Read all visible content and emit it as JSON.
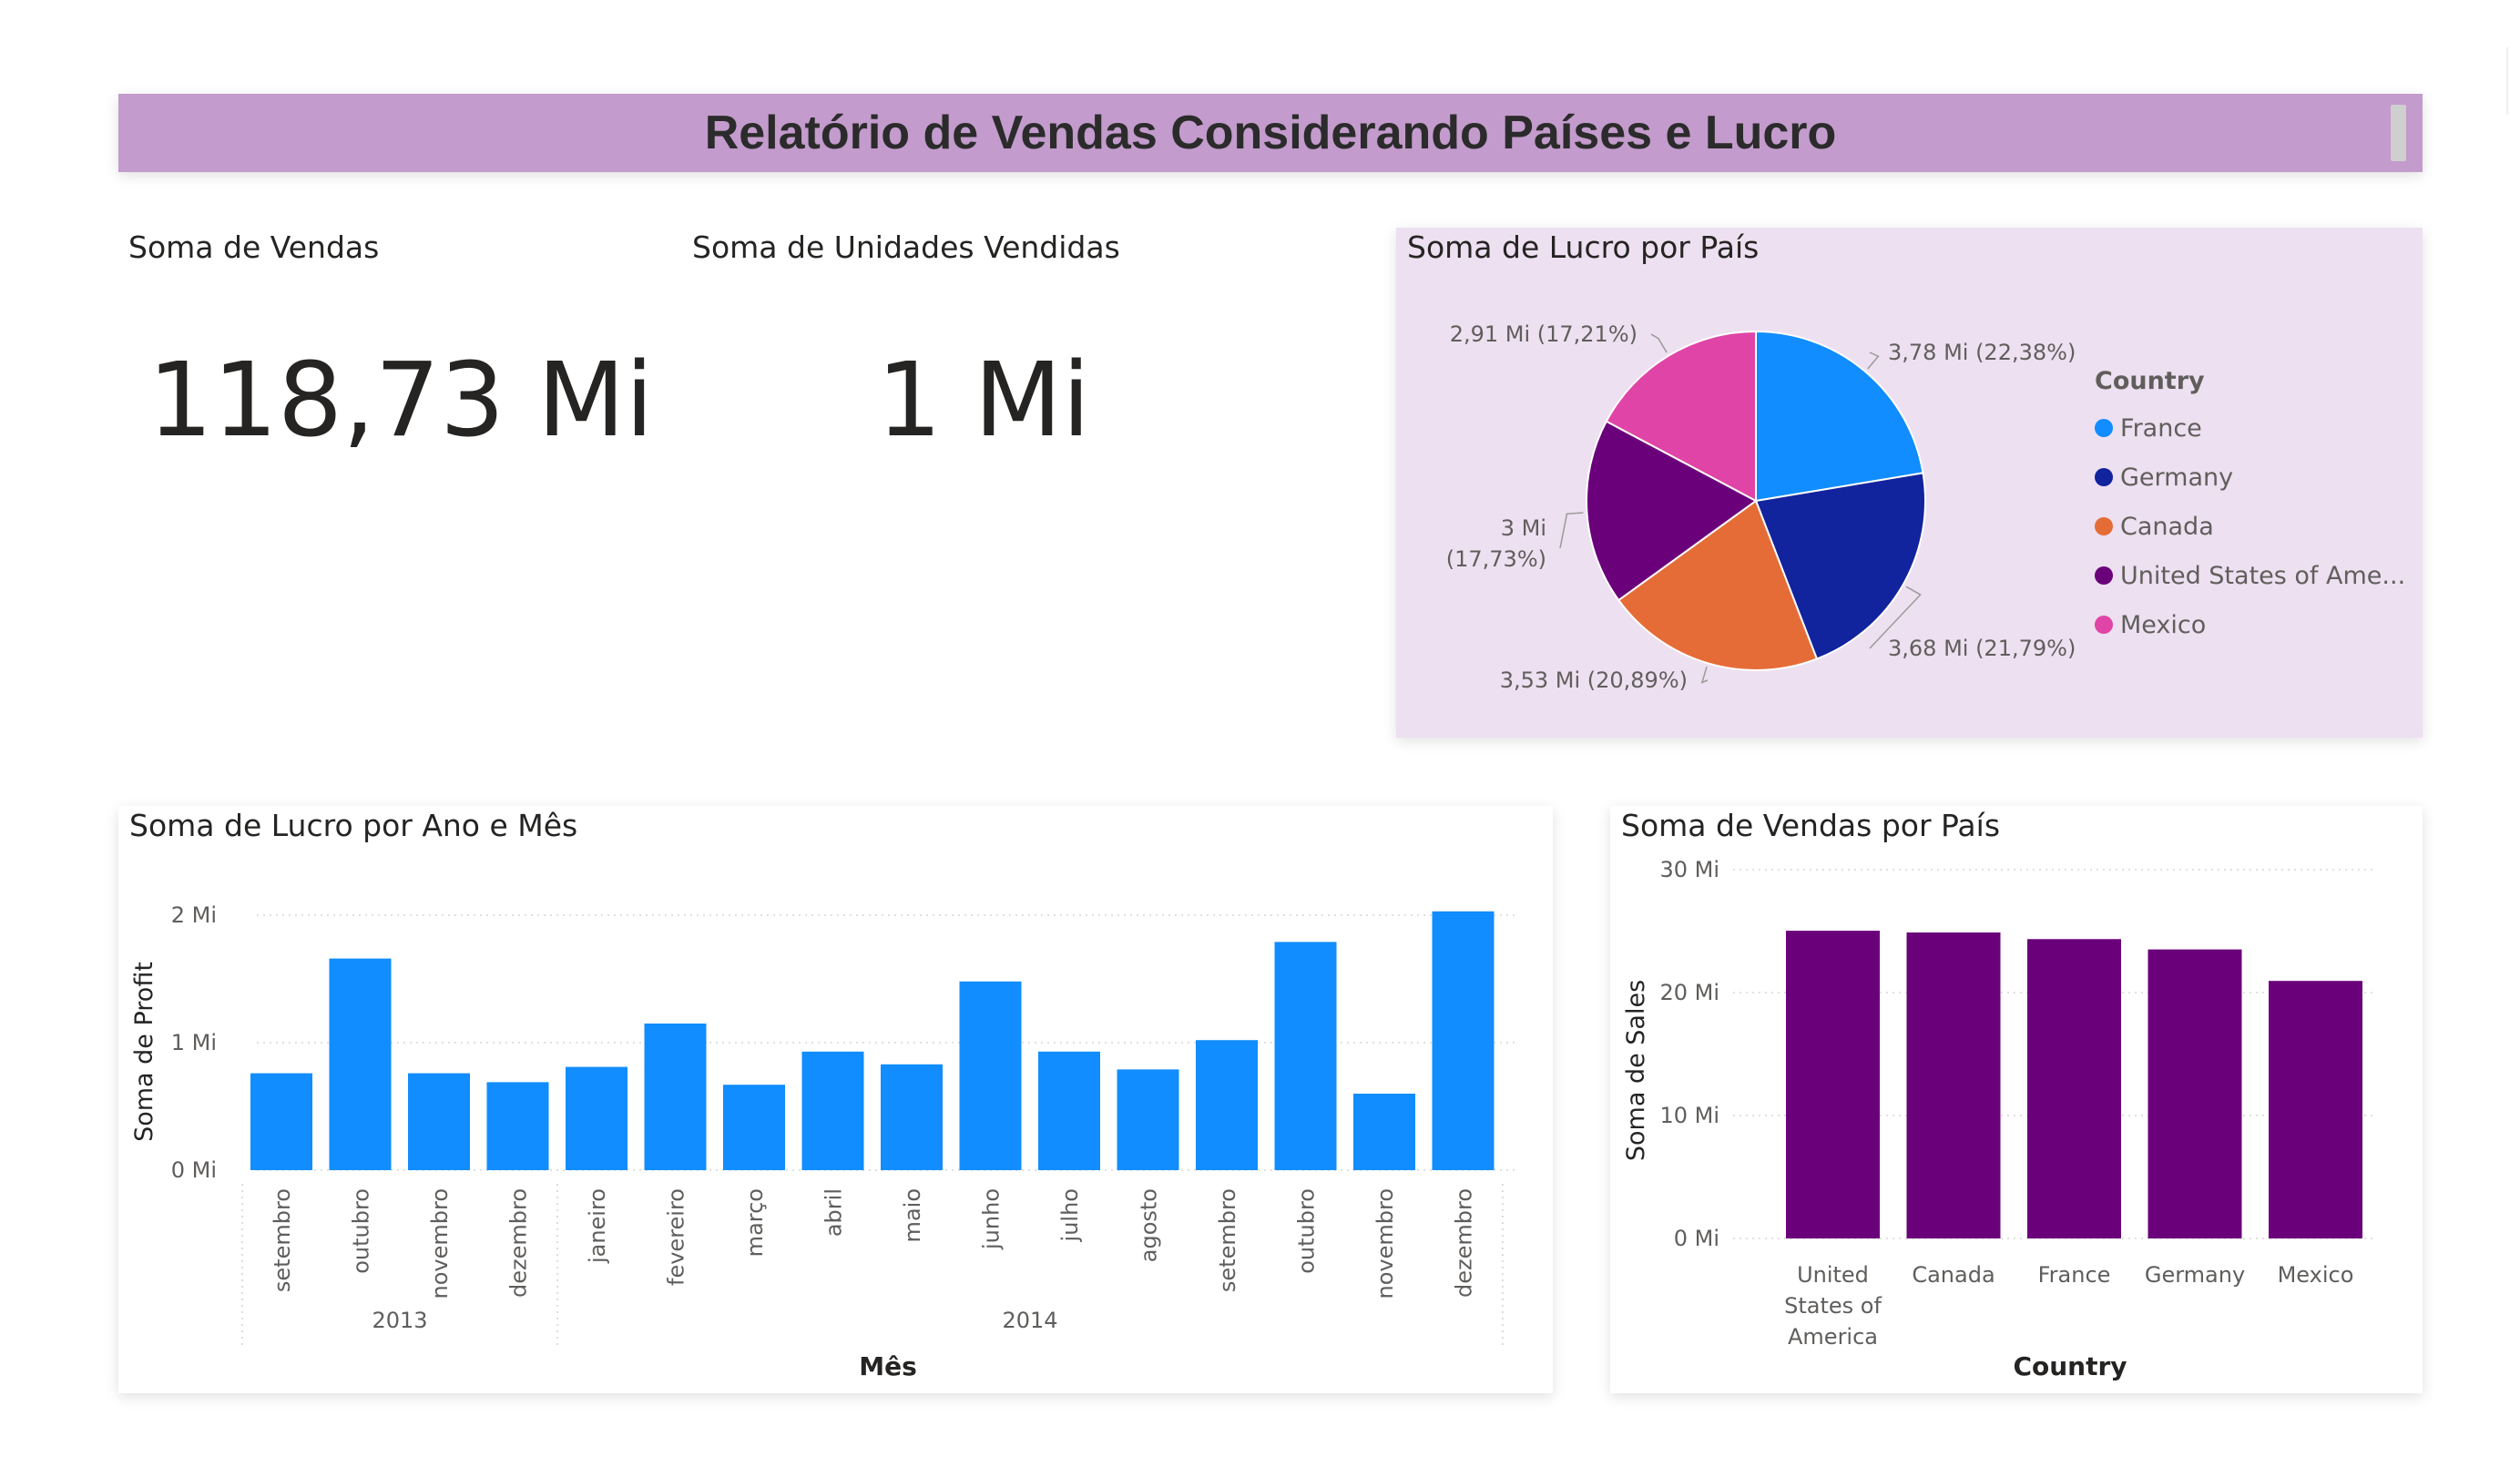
{
  "header": {
    "title": "Relatório de Vendas Considerando Países e Lucro"
  },
  "kpis": [
    {
      "label": "Soma de Vendas",
      "value": "118,73 Mi"
    },
    {
      "label": "Soma de Unidades Vendidas",
      "value": "1 Mi"
    }
  ],
  "pie": {
    "title": "Soma de Lucro por País",
    "legend_title": "Country",
    "legend_items": [
      "France",
      "Germany",
      "Canada",
      "United States of Ame...",
      "Mexico"
    ]
  },
  "profit_chart": {
    "title": "Soma de Lucro por Ano e Mês"
  },
  "sales_chart": {
    "title": "Soma de Vendas por País"
  },
  "colors": {
    "title_bar": "#c39bcc",
    "pie_background": "#ede0f0",
    "blue": "#118dff",
    "navy": "#12239e",
    "orange": "#e66c37",
    "purple": "#6b007b",
    "pink": "#e044a7",
    "bar_purple": "#6b007b"
  },
  "chart_data": [
    {
      "type": "pie",
      "title": "Soma de Lucro por País",
      "legend_title": "Country",
      "series": [
        {
          "name": "France",
          "value": 3.78,
          "label": "3,78 Mi (22,38%)",
          "color": "#118dff"
        },
        {
          "name": "Germany",
          "value": 3.68,
          "label": "3,68 Mi (21,79%)",
          "color": "#12239e"
        },
        {
          "name": "Canada",
          "value": 3.53,
          "label": "3,53 Mi (20,89%)",
          "color": "#e66c37"
        },
        {
          "name": "United States of America",
          "value": 3.0,
          "label_lines": [
            "3 Mi",
            "(17,73%)"
          ],
          "color": "#6b007b"
        },
        {
          "name": "Mexico",
          "value": 2.91,
          "label": "2,91 Mi (17,21%)",
          "color": "#e044a7"
        }
      ]
    },
    {
      "type": "bar",
      "title": "Soma de Lucro por Ano e Mês",
      "xlabel": "Mês",
      "ylabel": "Soma de Profit",
      "ylim": [
        0,
        2
      ],
      "yticks": [
        "0 Mi",
        "1 Mi",
        "2 Mi"
      ],
      "categories": [
        "setembro",
        "outubro",
        "novembro",
        "dezembro",
        "janeiro",
        "fevereiro",
        "março",
        "abril",
        "maio",
        "junho",
        "julho",
        "agosto",
        "setembro",
        "outubro",
        "novembro",
        "dezembro"
      ],
      "years": [
        {
          "label": "2013",
          "count": 4
        },
        {
          "label": "2014",
          "count": 12
        }
      ],
      "values": [
        0.76,
        1.66,
        0.76,
        0.69,
        0.81,
        1.15,
        0.67,
        0.93,
        0.83,
        1.48,
        0.93,
        0.79,
        1.02,
        1.79,
        0.6,
        2.03
      ],
      "color": "#118dff"
    },
    {
      "type": "bar",
      "title": "Soma de Vendas por País",
      "xlabel": "Country",
      "ylabel": "Soma de Sales",
      "ylim": [
        0,
        30
      ],
      "yticks": [
        "0 Mi",
        "10 Mi",
        "20 Mi",
        "30 Mi"
      ],
      "categories": [
        "United States of America",
        "Canada",
        "France",
        "Germany",
        "Mexico"
      ],
      "category_lines": [
        [
          "United",
          "States of",
          "America"
        ],
        [
          "Canada"
        ],
        [
          "France"
        ],
        [
          "Germany"
        ],
        [
          "Mexico"
        ]
      ],
      "values": [
        25.03,
        24.89,
        24.35,
        23.51,
        20.95
      ],
      "color": "#6b007b"
    }
  ]
}
